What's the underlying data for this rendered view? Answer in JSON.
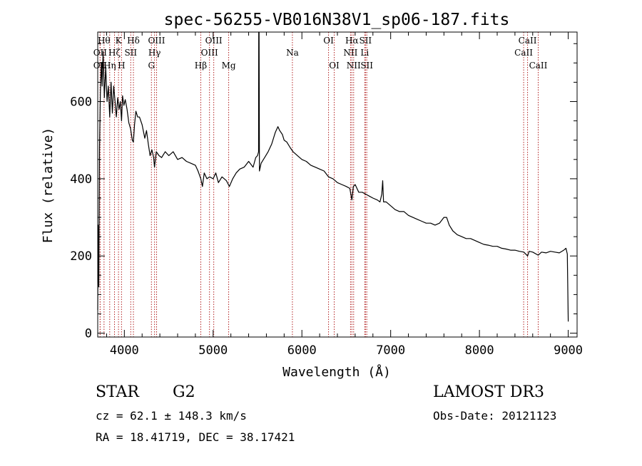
{
  "chart_data": {
    "type": "line",
    "title": "spec-56255-VB016N38V1_sp06-187.fits",
    "xlabel": "Wavelength (Å)",
    "ylabel": "Flux (relative)",
    "xlim": [
      3700,
      9100
    ],
    "ylim": [
      -10,
      780
    ],
    "x_ticks": [
      4000,
      5000,
      6000,
      7000,
      8000,
      9000
    ],
    "x_tick_labels": [
      "4000",
      "5000",
      "6000",
      "7000",
      "8000",
      "9000"
    ],
    "y_ticks": [
      0,
      200,
      400,
      600
    ],
    "y_tick_labels": [
      "0",
      "200",
      "400",
      "600"
    ],
    "line_color": "#000000",
    "marker_color": "#b22222",
    "series": [
      {
        "name": "flux",
        "points": [
          [
            3700,
            60
          ],
          [
            3705,
            280
          ],
          [
            3712,
            120
          ],
          [
            3720,
            480
          ],
          [
            3730,
            620
          ],
          [
            3740,
            700
          ],
          [
            3750,
            640
          ],
          [
            3760,
            730
          ],
          [
            3775,
            610
          ],
          [
            3790,
            690
          ],
          [
            3805,
            600
          ],
          [
            3820,
            640
          ],
          [
            3835,
            560
          ],
          [
            3850,
            650
          ],
          [
            3865,
            570
          ],
          [
            3880,
            640
          ],
          [
            3895,
            600
          ],
          [
            3910,
            560
          ],
          [
            3925,
            610
          ],
          [
            3940,
            580
          ],
          [
            3955,
            600
          ],
          [
            3968,
            550
          ],
          [
            3980,
            615
          ],
          [
            3995,
            590
          ],
          [
            4010,
            605
          ],
          [
            4030,
            580
          ],
          [
            4050,
            545
          ],
          [
            4070,
            530
          ],
          [
            4090,
            500
          ],
          [
            4102,
            495
          ],
          [
            4115,
            540
          ],
          [
            4130,
            575
          ],
          [
            4150,
            560
          ],
          [
            4170,
            560
          ],
          [
            4200,
            540
          ],
          [
            4230,
            505
          ],
          [
            4250,
            525
          ],
          [
            4270,
            490
          ],
          [
            4290,
            460
          ],
          [
            4310,
            475
          ],
          [
            4330,
            455
          ],
          [
            4340,
            430
          ],
          [
            4360,
            470
          ],
          [
            4390,
            460
          ],
          [
            4420,
            455
          ],
          [
            4460,
            470
          ],
          [
            4500,
            460
          ],
          [
            4550,
            470
          ],
          [
            4600,
            450
          ],
          [
            4650,
            455
          ],
          [
            4700,
            445
          ],
          [
            4750,
            440
          ],
          [
            4800,
            435
          ],
          [
            4830,
            420
          ],
          [
            4861,
            400
          ],
          [
            4880,
            380
          ],
          [
            4900,
            415
          ],
          [
            4930,
            400
          ],
          [
            4960,
            405
          ],
          [
            5000,
            400
          ],
          [
            5030,
            415
          ],
          [
            5060,
            390
          ],
          [
            5100,
            405
          ],
          [
            5150,
            395
          ],
          [
            5183,
            380
          ],
          [
            5220,
            400
          ],
          [
            5260,
            415
          ],
          [
            5300,
            425
          ],
          [
            5350,
            430
          ],
          [
            5400,
            445
          ],
          [
            5450,
            430
          ],
          [
            5480,
            455
          ],
          [
            5500,
            460
          ],
          [
            5512,
            470
          ],
          [
            5514,
            790
          ],
          [
            5518,
            790
          ],
          [
            5522,
            420
          ],
          [
            5540,
            440
          ],
          [
            5580,
            455
          ],
          [
            5620,
            470
          ],
          [
            5660,
            490
          ],
          [
            5700,
            520
          ],
          [
            5730,
            535
          ],
          [
            5750,
            525
          ],
          [
            5780,
            515
          ],
          [
            5800,
            500
          ],
          [
            5830,
            495
          ],
          [
            5870,
            480
          ],
          [
            5900,
            470
          ],
          [
            5950,
            460
          ],
          [
            6000,
            450
          ],
          [
            6050,
            445
          ],
          [
            6100,
            435
          ],
          [
            6150,
            430
          ],
          [
            6200,
            425
          ],
          [
            6250,
            420
          ],
          [
            6300,
            405
          ],
          [
            6350,
            400
          ],
          [
            6400,
            390
          ],
          [
            6450,
            385
          ],
          [
            6500,
            380
          ],
          [
            6540,
            375
          ],
          [
            6563,
            345
          ],
          [
            6580,
            380
          ],
          [
            6600,
            385
          ],
          [
            6640,
            365
          ],
          [
            6680,
            365
          ],
          [
            6720,
            360
          ],
          [
            6760,
            355
          ],
          [
            6800,
            350
          ],
          [
            6850,
            345
          ],
          [
            6880,
            340
          ],
          [
            6900,
            360
          ],
          [
            6910,
            395
          ],
          [
            6920,
            340
          ],
          [
            6950,
            340
          ],
          [
            7000,
            330
          ],
          [
            7050,
            320
          ],
          [
            7100,
            315
          ],
          [
            7150,
            315
          ],
          [
            7200,
            305
          ],
          [
            7250,
            300
          ],
          [
            7300,
            295
          ],
          [
            7350,
            290
          ],
          [
            7400,
            285
          ],
          [
            7450,
            285
          ],
          [
            7500,
            280
          ],
          [
            7550,
            285
          ],
          [
            7600,
            300
          ],
          [
            7630,
            300
          ],
          [
            7660,
            280
          ],
          [
            7700,
            265
          ],
          [
            7750,
            255
          ],
          [
            7800,
            250
          ],
          [
            7850,
            245
          ],
          [
            7900,
            245
          ],
          [
            7950,
            240
          ],
          [
            8000,
            235
          ],
          [
            8050,
            230
          ],
          [
            8100,
            228
          ],
          [
            8150,
            225
          ],
          [
            8200,
            225
          ],
          [
            8250,
            220
          ],
          [
            8300,
            218
          ],
          [
            8350,
            215
          ],
          [
            8400,
            215
          ],
          [
            8450,
            212
          ],
          [
            8500,
            210
          ],
          [
            8542,
            200
          ],
          [
            8560,
            212
          ],
          [
            8600,
            210
          ],
          [
            8662,
            202
          ],
          [
            8700,
            210
          ],
          [
            8750,
            208
          ],
          [
            8800,
            212
          ],
          [
            8850,
            210
          ],
          [
            8900,
            208
          ],
          [
            8950,
            215
          ],
          [
            8975,
            220
          ],
          [
            8990,
            205
          ],
          [
            9000,
            30
          ]
        ]
      }
    ],
    "lines": [
      {
        "name": "OII",
        "wavelength": 3727,
        "label_row": 2
      },
      {
        "name": "OII",
        "wavelength": 3727,
        "label_row": 3
      },
      {
        "name": "Hθ",
        "wavelength": 3771,
        "label_row": 1
      },
      {
        "name": "Hη",
        "wavelength": 3835,
        "label_row": 3
      },
      {
        "name": "Hζ",
        "wavelength": 3889,
        "label_row": 2
      },
      {
        "name": "K",
        "wavelength": 3934,
        "label_row": 1
      },
      {
        "name": "H",
        "wavelength": 3968,
        "label_row": 3
      },
      {
        "name": "SII",
        "wavelength": 4072,
        "label_row": 2
      },
      {
        "name": "Hδ",
        "wavelength": 4102,
        "label_row": 1
      },
      {
        "name": "Hγ",
        "wavelength": 4340,
        "label_row": 2
      },
      {
        "name": "G",
        "wavelength": 4305,
        "label_row": 3
      },
      {
        "name": "OIII",
        "wavelength": 4363,
        "label_row": 1
      },
      {
        "name": "Hβ",
        "wavelength": 4861,
        "label_row": 3
      },
      {
        "name": "OIII",
        "wavelength": 4959,
        "label_row": 2
      },
      {
        "name": "OIII",
        "wavelength": 5007,
        "label_row": 1
      },
      {
        "name": "Mg",
        "wavelength": 5175,
        "label_row": 3
      },
      {
        "name": "Na",
        "wavelength": 5893,
        "label_row": 2
      },
      {
        "name": "OI",
        "wavelength": 6300,
        "label_row": 1
      },
      {
        "name": "OI",
        "wavelength": 6364,
        "label_row": 3
      },
      {
        "name": "NII",
        "wavelength": 6548,
        "label_row": 2
      },
      {
        "name": "Hα",
        "wavelength": 6563,
        "label_row": 1
      },
      {
        "name": "NII",
        "wavelength": 6583,
        "label_row": 3
      },
      {
        "name": "SII",
        "wavelength": 6716,
        "label_row": 1
      },
      {
        "name": "Li",
        "wavelength": 6708,
        "label_row": 2
      },
      {
        "name": "SII",
        "wavelength": 6731,
        "label_row": 3
      },
      {
        "name": "CaII",
        "wavelength": 8498,
        "label_row": 2
      },
      {
        "name": "CaII",
        "wavelength": 8542,
        "label_row": 1
      },
      {
        "name": "CaII",
        "wavelength": 8662,
        "label_row": 3
      }
    ]
  },
  "info": {
    "object_class": "STAR",
    "subclass": "G2",
    "survey": "LAMOST DR3",
    "cz": "cz = 62.1 ± 148.3 km/s",
    "obs_date": "Obs-Date: 20121123",
    "coords": "RA =  18.41719, DEC =  38.17421"
  }
}
